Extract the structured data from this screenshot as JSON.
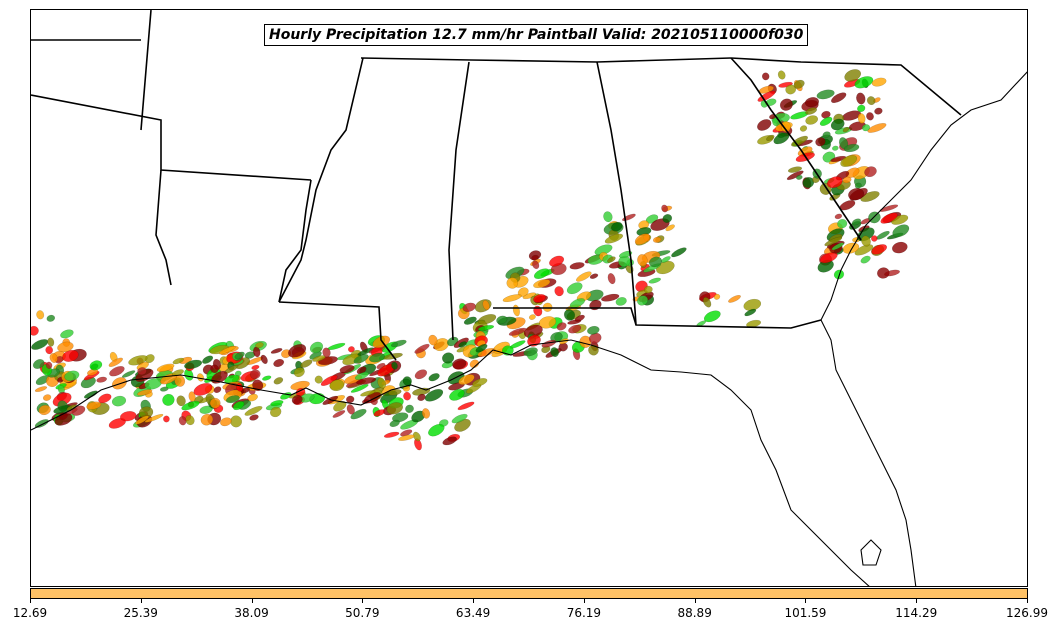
{
  "title": "Hourly Precipitation 12.7 mm/hr Paintball Valid: 202105110000f030",
  "colorbar": {
    "color": "#ffc266",
    "ticks": [
      "12.69",
      "25.39",
      "38.09",
      "50.79",
      "63.49",
      "76.19",
      "88.89",
      "101.59",
      "114.29",
      "126.99"
    ]
  },
  "colors": {
    "member_palette": [
      "#ff0000",
      "#ff8c00",
      "#00dd00",
      "#8b0000",
      "#9a9a00",
      "#006400",
      "#ffa500",
      "#b22222",
      "#32cd32",
      "#800000",
      "#808000",
      "#228b22"
    ],
    "boundary": "#000000"
  }
}
